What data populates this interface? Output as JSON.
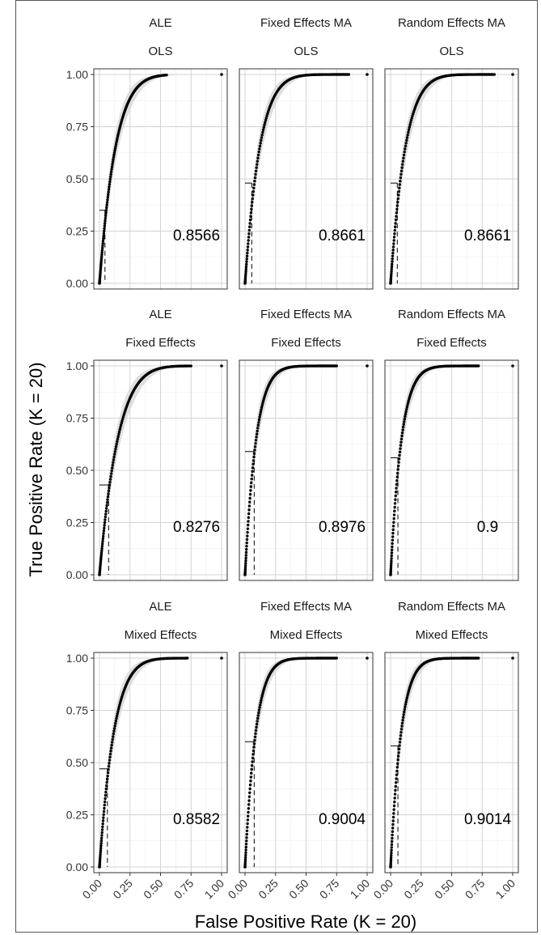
{
  "figure": {
    "ylabel": "True Positive Rate (K = 20)",
    "xlabel": "False Positive Rate (K = 20)"
  },
  "axes": {
    "x_ticks": [
      "0.00",
      "0.25",
      "0.50",
      "0.75",
      "1.00"
    ],
    "y_ticks": [
      "0.00",
      "0.25",
      "0.50",
      "0.75",
      "1.00"
    ],
    "xlim": [
      0,
      1
    ],
    "ylim": [
      0,
      1
    ],
    "grid": true
  },
  "colors": {
    "points": "#000000",
    "band": "#d9d9d9",
    "grid_major": "#d4d4d4",
    "grid_minor": "#ececec",
    "panel_border": "#333333"
  },
  "chart_data": [
    {
      "type": "scatter",
      "facet_col": "ALE",
      "facet_row": "OLS",
      "auc_label": "0.8566",
      "shape_k": 7.5,
      "threshold_point": [
        0.045,
        0.35
      ],
      "end_x": 0.55
    },
    {
      "type": "scatter",
      "facet_col": "Fixed Effects MA",
      "facet_row": "OLS",
      "auc_label": "0.8661",
      "shape_k": 8.2,
      "threshold_point": [
        0.055,
        0.48
      ],
      "end_x": 0.85
    },
    {
      "type": "scatter",
      "facet_col": "Random Effects MA",
      "facet_row": "OLS",
      "auc_label": "0.8661",
      "shape_k": 8.2,
      "threshold_point": [
        0.055,
        0.48
      ],
      "end_x": 0.85
    },
    {
      "type": "scatter",
      "facet_col": "ALE",
      "facet_row": "Fixed Effects",
      "auc_label": "0.8276",
      "shape_k": 6.5,
      "threshold_point": [
        0.075,
        0.43
      ],
      "end_x": 0.75
    },
    {
      "type": "scatter",
      "facet_col": "Fixed Effects MA",
      "facet_row": "Fixed Effects",
      "auc_label": "0.8976",
      "shape_k": 11.0,
      "threshold_point": [
        0.075,
        0.59
      ],
      "end_x": 0.75
    },
    {
      "type": "scatter",
      "facet_col": "Random Effects MA",
      "facet_row": "Fixed Effects",
      "auc_label": "0.9",
      "shape_k": 11.2,
      "threshold_point": [
        0.06,
        0.56
      ],
      "end_x": 0.72
    },
    {
      "type": "scatter",
      "facet_col": "ALE",
      "facet_row": "Mixed Effects",
      "auc_label": "0.8582",
      "shape_k": 8.3,
      "threshold_point": [
        0.065,
        0.47
      ],
      "end_x": 0.72
    },
    {
      "type": "scatter",
      "facet_col": "Fixed Effects MA",
      "facet_row": "Mixed Effects",
      "auc_label": "0.9004",
      "shape_k": 11.3,
      "threshold_point": [
        0.075,
        0.6
      ],
      "end_x": 0.75
    },
    {
      "type": "scatter",
      "facet_col": "Random Effects MA",
      "facet_row": "Mixed Effects",
      "auc_label": "0.9014",
      "shape_k": 11.5,
      "threshold_point": [
        0.06,
        0.58
      ],
      "end_x": 0.72
    }
  ]
}
